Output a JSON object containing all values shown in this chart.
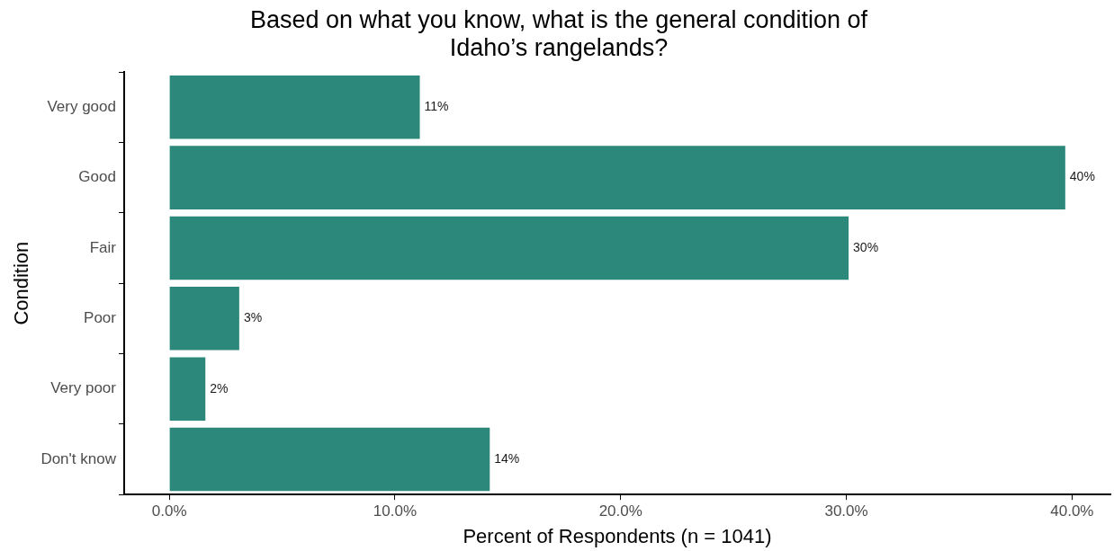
{
  "chart_data": {
    "type": "bar",
    "orientation": "horizontal",
    "title": "Based on what you know, what is the general condition of\nIdaho’s rangelands?",
    "xlabel": "Percent of Respondents (n = 1041)",
    "ylabel": "Condition",
    "categories": [
      "Very good",
      "Good",
      "Fair",
      "Poor",
      "Very poor",
      "Don't know"
    ],
    "values": [
      11.1,
      39.7,
      30.1,
      3.1,
      1.6,
      14.2
    ],
    "value_labels": [
      "11%",
      "40%",
      "30%",
      "3%",
      "2%",
      "14%"
    ],
    "color": "#2d887c",
    "xlim": [
      -2,
      41.7
    ],
    "xticks": [
      {
        "value": 0,
        "label": "0.0%"
      },
      {
        "value": 10,
        "label": "10.0%"
      },
      {
        "value": 20,
        "label": "20.0%"
      },
      {
        "value": 30,
        "label": "30.0%"
      },
      {
        "value": 40,
        "label": "40.0%"
      }
    ],
    "grid": false,
    "legend": false
  }
}
